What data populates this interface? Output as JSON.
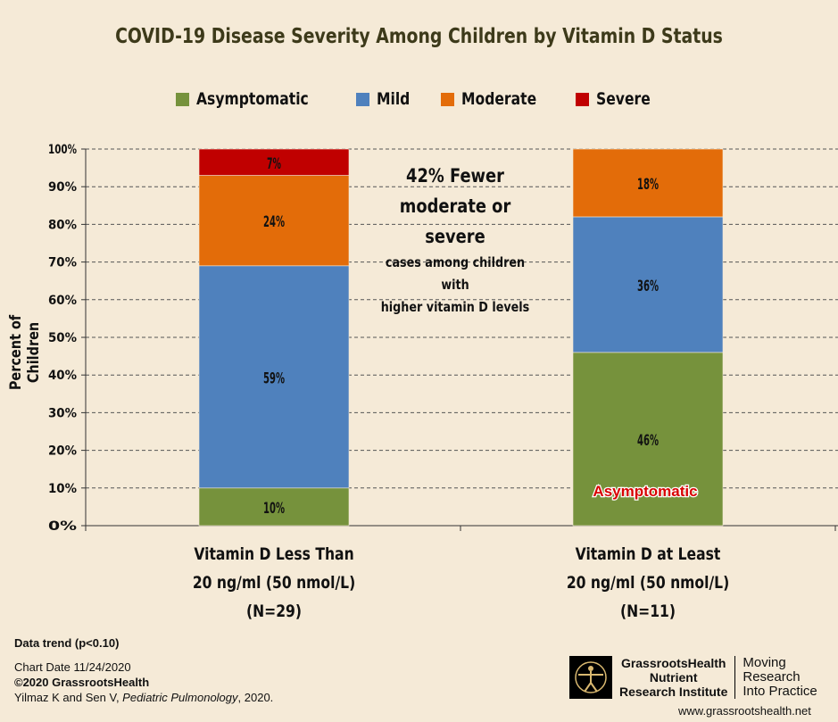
{
  "chart_data": {
    "type": "bar",
    "stacked": true,
    "title": "COVID-19 Disease Severity Among Children by Vitamin D Status",
    "ylabel": "Percent of Children",
    "xlabel": "",
    "ylim": [
      0,
      100
    ],
    "yticks": [
      "0%",
      "10%",
      "20%",
      "30%",
      "40%",
      "50%",
      "60%",
      "70%",
      "80%",
      "90%",
      "100%"
    ],
    "grid": true,
    "legend_position": "top-center",
    "categories": [
      [
        "Vitamin D Less Than",
        "20 ng/ml (50 nmol/L)",
        "(N=29)"
      ],
      [
        "Vitamin D at Least",
        "20 ng/ml (50 nmol/L)",
        "(N=11)"
      ]
    ],
    "series": [
      {
        "name": "Asymptomatic",
        "color": "#76923c",
        "values": [
          10,
          46
        ],
        "labels": [
          "10%",
          "46%"
        ]
      },
      {
        "name": "Mild",
        "color": "#4f81bd",
        "values": [
          59,
          36
        ],
        "labels": [
          "59%",
          "36%"
        ]
      },
      {
        "name": "Moderate",
        "color": "#e36c09",
        "values": [
          24,
          18
        ],
        "labels": [
          "24%",
          "18%"
        ]
      },
      {
        "name": "Severe",
        "color": "#c00000",
        "values": [
          7,
          0
        ],
        "labels": [
          "7%",
          ""
        ]
      }
    ],
    "annotations": {
      "fewer_big": [
        "42% Fewer",
        "moderate or severe"
      ],
      "fewer_small": [
        "cases among children with",
        "higher vitamin D levels"
      ],
      "bar2_overlay": "Asymptomatic"
    }
  },
  "footer": {
    "trend": "Data trend (p<0.10)",
    "chart_date": "Chart Date 11/24/2020",
    "copyright": "©2020 GrassrootsHealth",
    "citation_authors": "Yilmaz K and Sen V, ",
    "citation_journal": "Pediatric Pulmonology",
    "citation_year": ", 2020."
  },
  "logo": {
    "line1": "GrassrootsHealth",
    "line2": "Nutrient",
    "line3": "Research Institute",
    "tag1": "Moving",
    "tag2": "Research",
    "tag3": "Into Practice"
  },
  "website": "www.grassrootshealth.net"
}
